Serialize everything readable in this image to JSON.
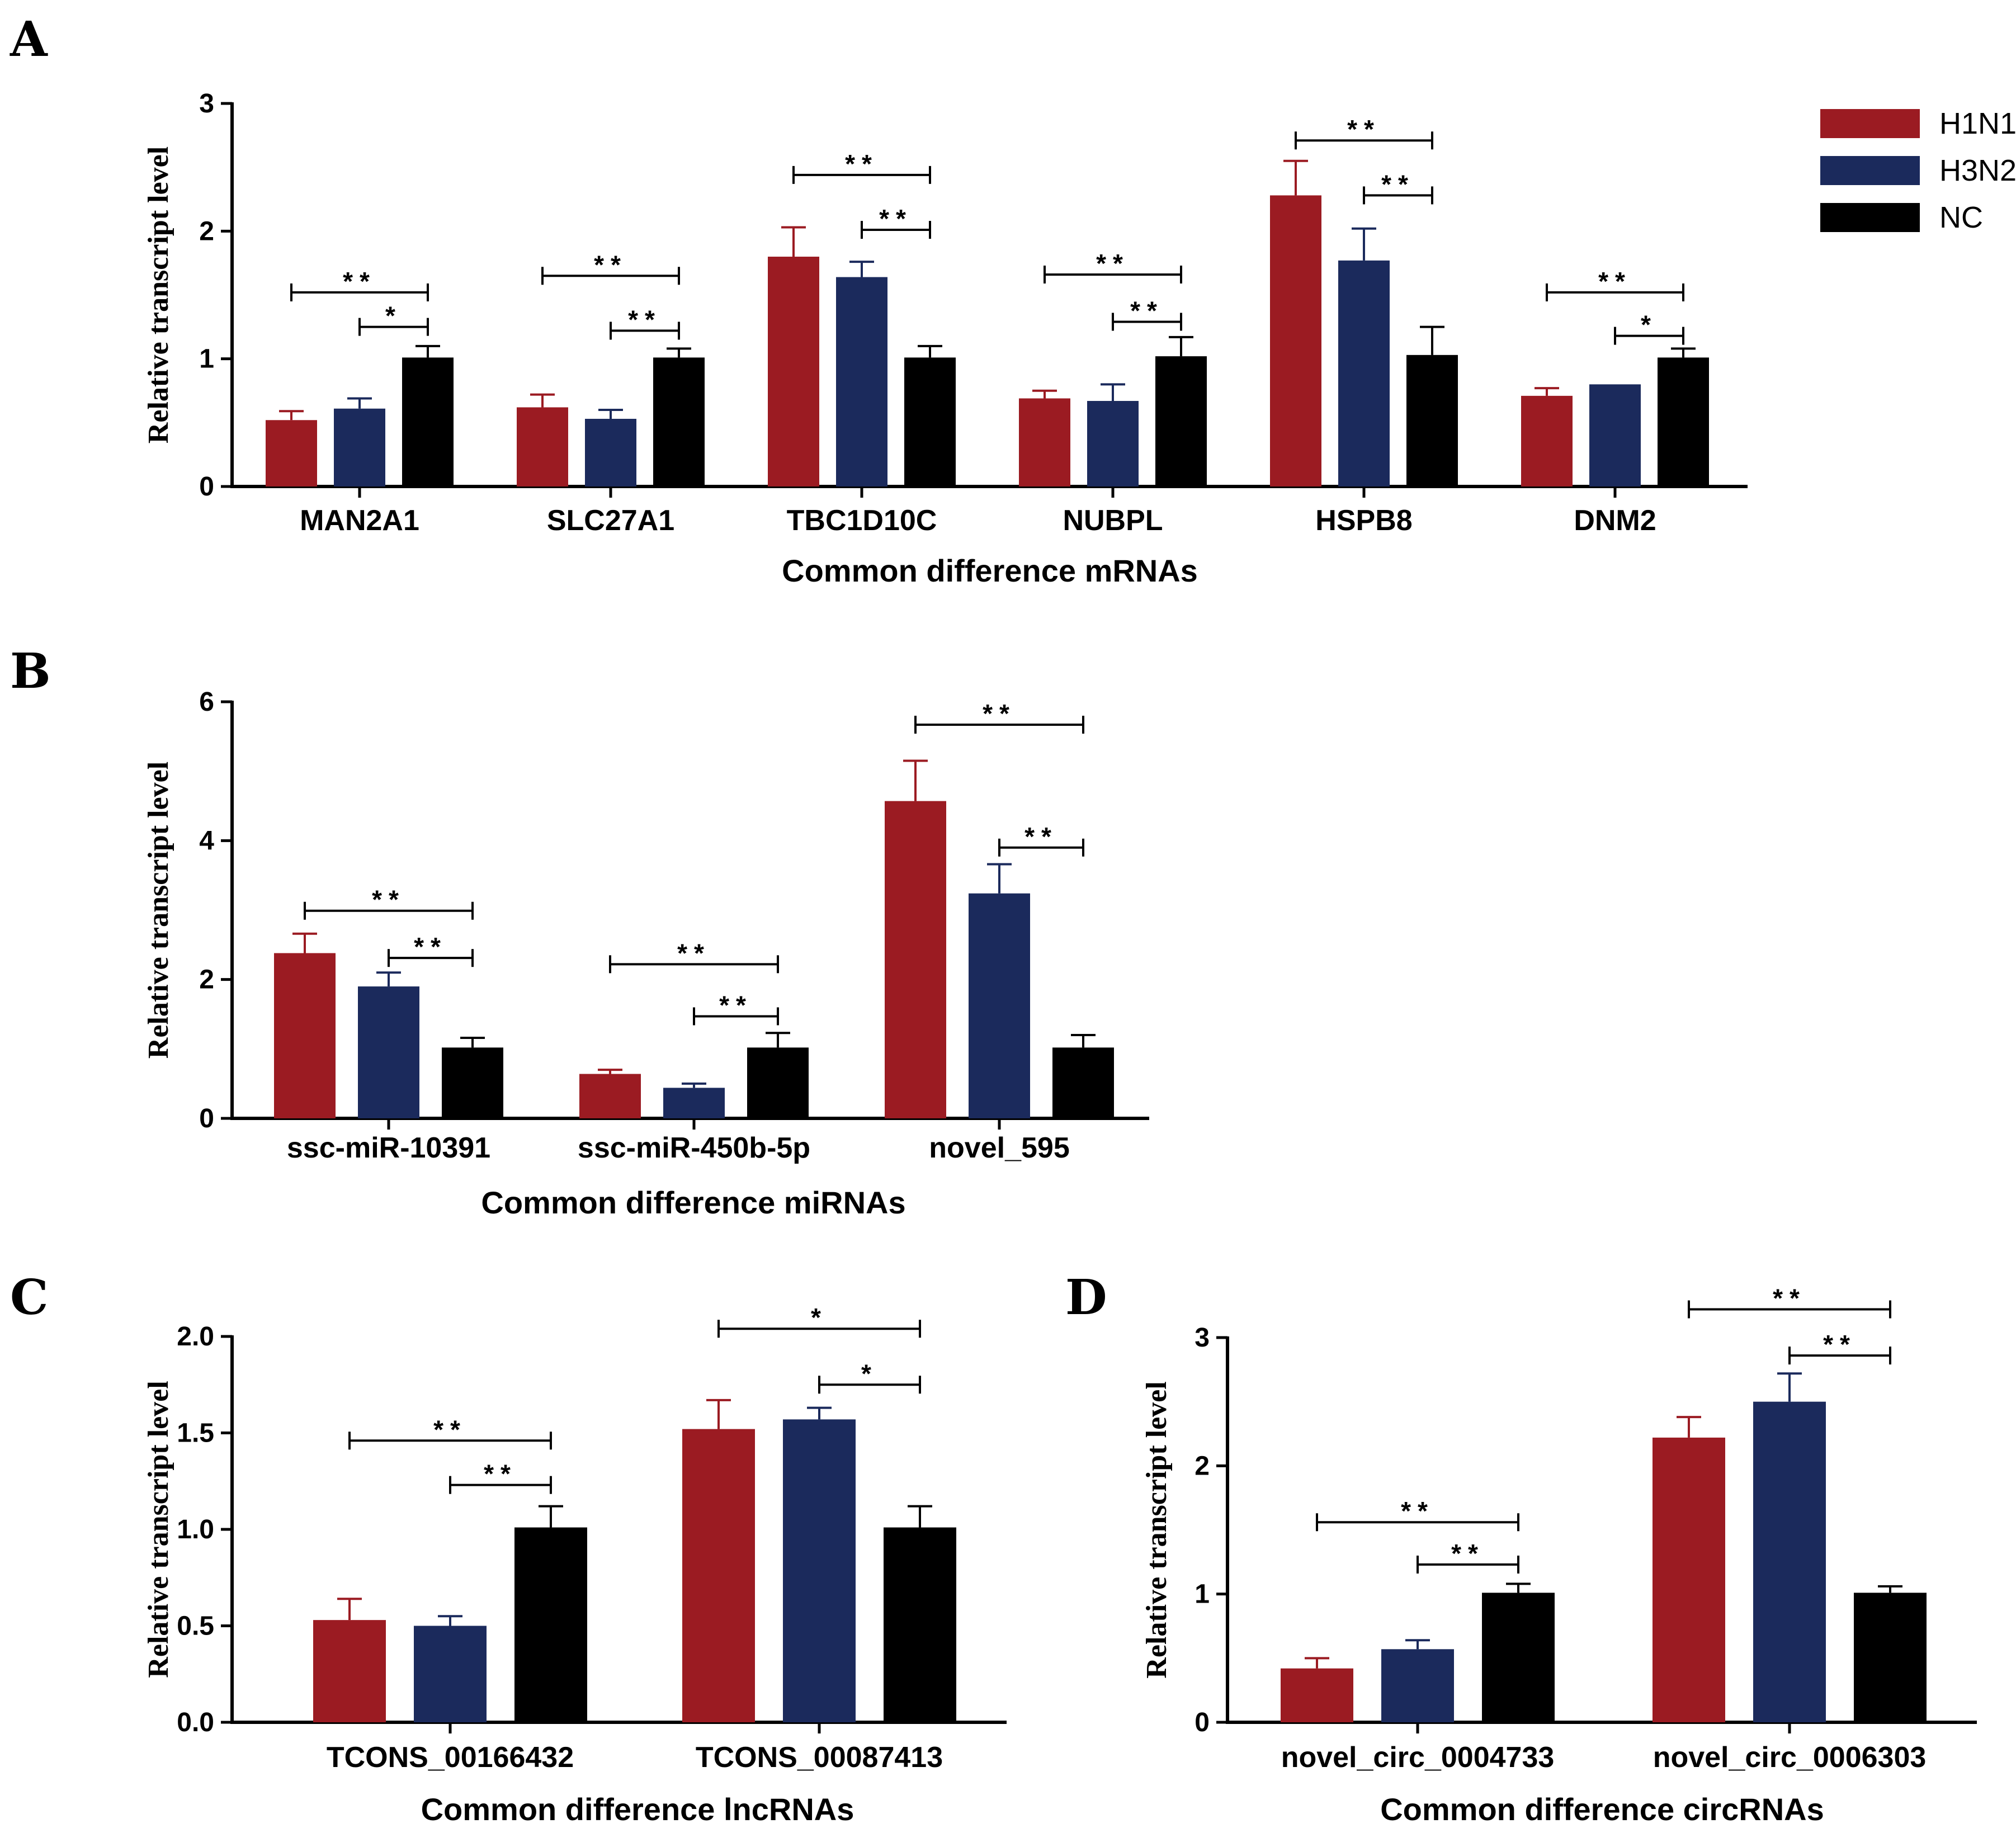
{
  "legend": {
    "items": [
      {
        "name": "H1N1",
        "color": "#9b1b22"
      },
      {
        "name": "H3N2",
        "color": "#1b2a5c"
      },
      {
        "name": "NC",
        "color": "#000000"
      }
    ]
  },
  "chart_data": [
    {
      "panel": "A",
      "type": "bar",
      "xlabel": "Common difference mRNAs",
      "ylabel": "Relative transcript level",
      "ylim": [
        0,
        3
      ],
      "yticks": [
        "0",
        "1",
        "2",
        "3"
      ],
      "categories": [
        "MAN2A1",
        "SLC27A1",
        "TBC1D10C",
        "NUBPL",
        "HSPB8",
        "DNM2"
      ],
      "series": [
        {
          "name": "H1N1",
          "values": [
            0.52,
            0.62,
            1.8,
            0.69,
            2.28,
            0.71
          ],
          "errors": [
            0.07,
            0.1,
            0.23,
            0.06,
            0.27,
            0.06
          ]
        },
        {
          "name": "H3N2",
          "values": [
            0.61,
            0.53,
            1.64,
            0.67,
            1.77,
            0.8
          ],
          "errors": [
            0.08,
            0.07,
            0.12,
            0.13,
            0.25,
            0
          ]
        },
        {
          "name": "NC",
          "values": [
            1.01,
            1.01,
            1.01,
            1.02,
            1.03,
            1.01
          ],
          "errors": [
            0.09,
            0.07,
            0.09,
            0.15,
            0.22,
            0.07
          ]
        }
      ],
      "significance": [
        {
          "category": 0,
          "from": 0,
          "to": 2,
          "level": 1.52,
          "label": "**"
        },
        {
          "category": 0,
          "from": 1,
          "to": 2,
          "level": 1.25,
          "label": "*"
        },
        {
          "category": 1,
          "from": 0,
          "to": 2,
          "level": 1.65,
          "label": "**"
        },
        {
          "category": 1,
          "from": 1,
          "to": 2,
          "level": 1.22,
          "label": "**"
        },
        {
          "category": 2,
          "from": 0,
          "to": 2,
          "level": 2.44,
          "label": "**"
        },
        {
          "category": 2,
          "from": 1,
          "to": 2,
          "level": 2.01,
          "label": "**"
        },
        {
          "category": 3,
          "from": 0,
          "to": 2,
          "level": 1.66,
          "label": "**"
        },
        {
          "category": 3,
          "from": 1,
          "to": 2,
          "level": 1.29,
          "label": "**"
        },
        {
          "category": 4,
          "from": 0,
          "to": 2,
          "level": 2.71,
          "label": "**"
        },
        {
          "category": 4,
          "from": 1,
          "to": 2,
          "level": 2.28,
          "label": "**"
        },
        {
          "category": 5,
          "from": 0,
          "to": 2,
          "level": 1.52,
          "label": "**"
        },
        {
          "category": 5,
          "from": 1,
          "to": 2,
          "level": 1.18,
          "label": "*"
        }
      ]
    },
    {
      "panel": "B",
      "type": "bar",
      "xlabel": "Common difference miRNAs",
      "ylabel": "Relative transcript level",
      "ylim": [
        0,
        6
      ],
      "yticks": [
        "0",
        "2",
        "4",
        "6"
      ],
      "categories": [
        "ssc-miR-10391",
        "ssc-miR-450b-5p",
        "novel_595"
      ],
      "series": [
        {
          "name": "H1N1",
          "values": [
            2.38,
            0.64,
            4.57
          ],
          "errors": [
            0.28,
            0.06,
            0.58
          ]
        },
        {
          "name": "H3N2",
          "values": [
            1.9,
            0.44,
            3.24
          ],
          "errors": [
            0.2,
            0.06,
            0.42
          ]
        },
        {
          "name": "NC",
          "values": [
            1.02,
            1.02,
            1.02
          ],
          "errors": [
            0.14,
            0.21,
            0.18
          ]
        }
      ],
      "significance": [
        {
          "category": 0,
          "from": 0,
          "to": 2,
          "level": 2.99,
          "label": "**"
        },
        {
          "category": 0,
          "from": 1,
          "to": 2,
          "level": 2.31,
          "label": "**"
        },
        {
          "category": 1,
          "from": 0,
          "to": 2,
          "level": 2.22,
          "label": "**"
        },
        {
          "category": 1,
          "from": 1,
          "to": 2,
          "level": 1.47,
          "label": "**"
        },
        {
          "category": 2,
          "from": 0,
          "to": 2,
          "level": 5.67,
          "label": "**"
        },
        {
          "category": 2,
          "from": 1,
          "to": 2,
          "level": 3.9,
          "label": "**"
        }
      ]
    },
    {
      "panel": "C",
      "type": "bar",
      "xlabel": "Common difference lncRNAs",
      "ylabel": "Relative transcript level",
      "ylim": [
        0,
        2
      ],
      "yticks": [
        "0.0",
        "0.5",
        "1.0",
        "1.5",
        "2.0"
      ],
      "categories": [
        "TCONS_00166432",
        "TCONS_00087413"
      ],
      "series": [
        {
          "name": "H1N1",
          "values": [
            0.53,
            1.52
          ],
          "errors": [
            0.11,
            0.15
          ]
        },
        {
          "name": "H3N2",
          "values": [
            0.5,
            1.57
          ],
          "errors": [
            0.05,
            0.06
          ]
        },
        {
          "name": "NC",
          "values": [
            1.01,
            1.01
          ],
          "errors": [
            0.11,
            0.11
          ]
        }
      ],
      "significance": [
        {
          "category": 0,
          "from": 0,
          "to": 2,
          "level": 1.46,
          "label": "**"
        },
        {
          "category": 0,
          "from": 1,
          "to": 2,
          "level": 1.23,
          "label": "**"
        },
        {
          "category": 1,
          "from": 0,
          "to": 2,
          "level": 2.04,
          "label": "*"
        },
        {
          "category": 1,
          "from": 1,
          "to": 2,
          "level": 1.75,
          "label": "*"
        }
      ]
    },
    {
      "panel": "D",
      "type": "bar",
      "xlabel": "Common difference circRNAs",
      "ylabel": "Relative transcript level",
      "ylim": [
        0,
        3
      ],
      "yticks": [
        "0",
        "1",
        "2",
        "3"
      ],
      "categories": [
        "novel_circ_0004733",
        "novel_circ_0006303"
      ],
      "series": [
        {
          "name": "H1N1",
          "values": [
            0.42,
            2.22
          ],
          "errors": [
            0.08,
            0.16
          ]
        },
        {
          "name": "H3N2",
          "values": [
            0.57,
            2.5
          ],
          "errors": [
            0.07,
            0.22
          ]
        },
        {
          "name": "NC",
          "values": [
            1.01,
            1.01
          ],
          "errors": [
            0.07,
            0.05
          ]
        }
      ],
      "significance": [
        {
          "category": 0,
          "from": 0,
          "to": 2,
          "level": 1.56,
          "label": "**"
        },
        {
          "category": 0,
          "from": 1,
          "to": 2,
          "level": 1.23,
          "label": "**"
        },
        {
          "category": 1,
          "from": 0,
          "to": 2,
          "level": 3.22,
          "label": "**"
        },
        {
          "category": 1,
          "from": 1,
          "to": 2,
          "level": 2.86,
          "label": "**"
        }
      ]
    }
  ]
}
